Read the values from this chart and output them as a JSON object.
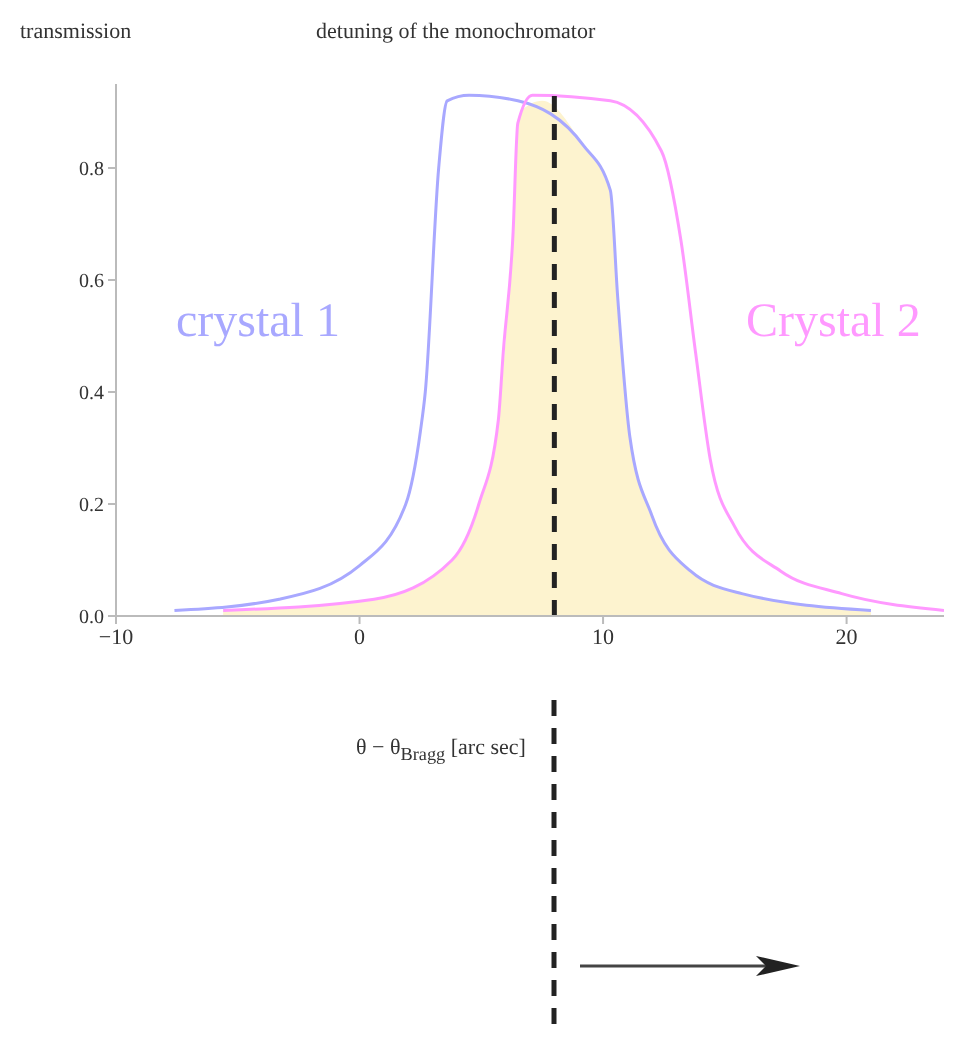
{
  "chart_data": {
    "type": "line",
    "title": "detuning of the monochromator",
    "ylabel": "transmission",
    "xlabel": "θ − θ$_{Bragg}$ [arc sec]",
    "xlim": [
      -10,
      24
    ],
    "xticks": [
      {
        "value": -10,
        "label": "−10"
      },
      0,
      10,
      20
    ],
    "ylim": [
      0,
      0.95
    ],
    "yticks": [
      {
        "value": 0,
        "label": "0.0"
      },
      0.2,
      0.4,
      0.6,
      0.8
    ],
    "marker": "none",
    "series": [
      {
        "type": "area",
        "color": "#fdf3cf",
        "x": [
          -5.6,
          0.6,
          3.8,
          4.9,
          5.7,
          6.3,
          6.6,
          7.5,
          9.2,
          10.3,
          10.6,
          11.1,
          12,
          13.6,
          15.7,
          21
        ],
        "values": [
          0.01,
          0.03,
          0.1,
          0.2,
          0.35,
          0.68,
          0.9,
          0.92,
          0.84,
          0.76,
          0.57,
          0.32,
          0.18,
          0.08,
          0.04,
          0.01
        ]
      },
      {
        "name": "crystal 1",
        "color": "#a8a8ff",
        "x": [
          -7.6,
          -3.3,
          0,
          1.9,
          2.5,
          2.7,
          3.25,
          3.6,
          4.5,
          6.5,
          9.2,
          10.3,
          10.6,
          11.1,
          12,
          13.6,
          15.7,
          21
        ],
        "values": [
          0.01,
          0.03,
          0.09,
          0.2,
          0.33,
          0.4,
          0.8,
          0.92,
          0.93,
          0.92,
          0.84,
          0.76,
          0.57,
          0.32,
          0.18,
          0.08,
          0.04,
          0.01
        ]
      },
      {
        "name": "Crystal 2",
        "color": "#ff99ff",
        "x": [
          -5.6,
          0.6,
          3.8,
          4.9,
          5.7,
          5.9,
          6.3,
          6.5,
          7.1,
          10.3,
          12.4,
          13.2,
          13.8,
          14.4,
          15.4,
          17.3,
          19.8,
          24
        ],
        "values": [
          0.01,
          0.03,
          0.1,
          0.2,
          0.35,
          0.47,
          0.68,
          0.88,
          0.93,
          0.92,
          0.83,
          0.67,
          0.47,
          0.28,
          0.16,
          0.08,
          0.04,
          0.01
        ]
      }
    ],
    "ref_lines": [
      {
        "axis": "x",
        "value": 8,
        "color": "#222222",
        "line_style": "dashed"
      }
    ]
  }
}
